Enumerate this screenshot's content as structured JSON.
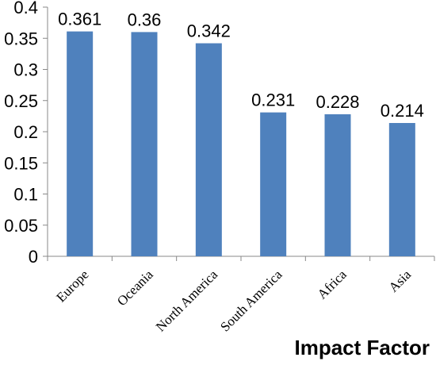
{
  "chart_data": {
    "type": "bar",
    "title": "Impact Factor",
    "categories": [
      "Europe",
      "Oceania",
      "North America",
      "South America",
      "Africa",
      "Asia"
    ],
    "values": [
      0.361,
      0.36,
      0.342,
      0.231,
      0.228,
      0.214
    ],
    "data_labels": [
      "0.361",
      "0.36",
      "0.342",
      "0.231",
      "0.228",
      "0.214"
    ],
    "yticks": [
      "0",
      "0.05",
      "0.1",
      "0.15",
      "0.2",
      "0.25",
      "0.3",
      "0.35",
      "0.4"
    ],
    "ylim": [
      0,
      0.4
    ],
    "xlabel": "",
    "ylabel": "",
    "grid": false,
    "legend": "none",
    "bar_color": "#4f81bd",
    "axis_color": "#888888"
  }
}
